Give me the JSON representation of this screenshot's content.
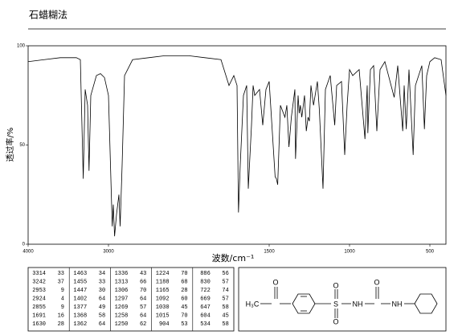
{
  "chart_data": {
    "type": "line",
    "title": "石蜡糊法",
    "xlabel": "波数/cm⁻¹",
    "ylabel": "透过率/%",
    "color": "#000000",
    "x": [
      4000,
      3800,
      3600,
      3400,
      3350,
      3314,
      3290,
      3260,
      3242,
      3220,
      3150,
      3100,
      3050,
      3000,
      2953,
      2940,
      2924,
      2900,
      2870,
      2855,
      2830,
      2800,
      2700,
      2500,
      2300,
      2100,
      2000,
      1900,
      1800,
      1750,
      1720,
      1700,
      1691,
      1680,
      1660,
      1640,
      1630,
      1610,
      1600,
      1590,
      1560,
      1540,
      1520,
      1500,
      1463,
      1455,
      1447,
      1430,
      1402,
      1390,
      1377,
      1368,
      1362,
      1340,
      1336,
      1320,
      1313,
      1306,
      1297,
      1280,
      1269,
      1258,
      1250,
      1240,
      1224,
      1200,
      1188,
      1165,
      1150,
      1120,
      1092,
      1080,
      1050,
      1030,
      1015,
      1000,
      980,
      940,
      904,
      890,
      886,
      870,
      850,
      830,
      810,
      780,
      722,
      700,
      669,
      660,
      647,
      630,
      604,
      590,
      550,
      534,
      520,
      500,
      470,
      430,
      400
    ],
    "values": [
      92,
      93,
      94,
      94,
      93,
      33,
      78,
      70,
      37,
      75,
      85,
      86,
      84,
      75,
      9,
      20,
      4,
      15,
      25,
      9,
      40,
      85,
      93,
      94,
      95,
      95,
      95,
      94,
      93,
      80,
      85,
      80,
      16,
      40,
      75,
      80,
      28,
      60,
      80,
      75,
      78,
      60,
      78,
      82,
      34,
      33,
      30,
      70,
      64,
      70,
      49,
      58,
      64,
      78,
      43,
      75,
      66,
      70,
      64,
      75,
      57,
      64,
      62,
      80,
      70,
      82,
      68,
      28,
      78,
      85,
      60,
      80,
      82,
      45,
      70,
      88,
      85,
      88,
      53,
      80,
      56,
      88,
      90,
      57,
      88,
      92,
      74,
      90,
      57,
      80,
      58,
      88,
      45,
      80,
      90,
      58,
      85,
      92,
      94,
      93,
      75
    ],
    "xlim": [
      4000,
      400
    ],
    "x_scale_break": 2000,
    "xticks": [
      4000,
      3000,
      1500,
      1000,
      500
    ],
    "ylim": [
      0,
      100
    ],
    "yticks": [
      0,
      50,
      100
    ]
  },
  "peak_table": {
    "columns": [
      [
        [
          3314,
          33
        ],
        [
          3242,
          37
        ],
        [
          2953,
          9
        ],
        [
          2924,
          4
        ],
        [
          2855,
          9
        ],
        [
          1691,
          16
        ],
        [
          1630,
          28
        ]
      ],
      [
        [
          1463,
          34
        ],
        [
          1455,
          33
        ],
        [
          1447,
          30
        ],
        [
          1402,
          64
        ],
        [
          1377,
          49
        ],
        [
          1368,
          58
        ],
        [
          1362,
          64
        ]
      ],
      [
        [
          1336,
          43
        ],
        [
          1313,
          66
        ],
        [
          1306,
          70
        ],
        [
          1297,
          64
        ],
        [
          1269,
          57
        ],
        [
          1258,
          64
        ],
        [
          1250,
          62
        ]
      ],
      [
        [
          1224,
          70
        ],
        [
          1188,
          68
        ],
        [
          1165,
          28
        ],
        [
          1092,
          60
        ],
        [
          1030,
          45
        ],
        [
          1015,
          70
        ],
        [
          904,
          53
        ]
      ],
      [
        [
          886,
          56
        ],
        [
          830,
          57
        ],
        [
          722,
          74
        ],
        [
          669,
          57
        ],
        [
          647,
          58
        ],
        [
          604,
          45
        ],
        [
          534,
          58
        ]
      ]
    ]
  },
  "structure": {
    "labels": [
      "O",
      "H₃C",
      "S",
      "O",
      "O",
      "NH",
      "O",
      "NH"
    ]
  }
}
